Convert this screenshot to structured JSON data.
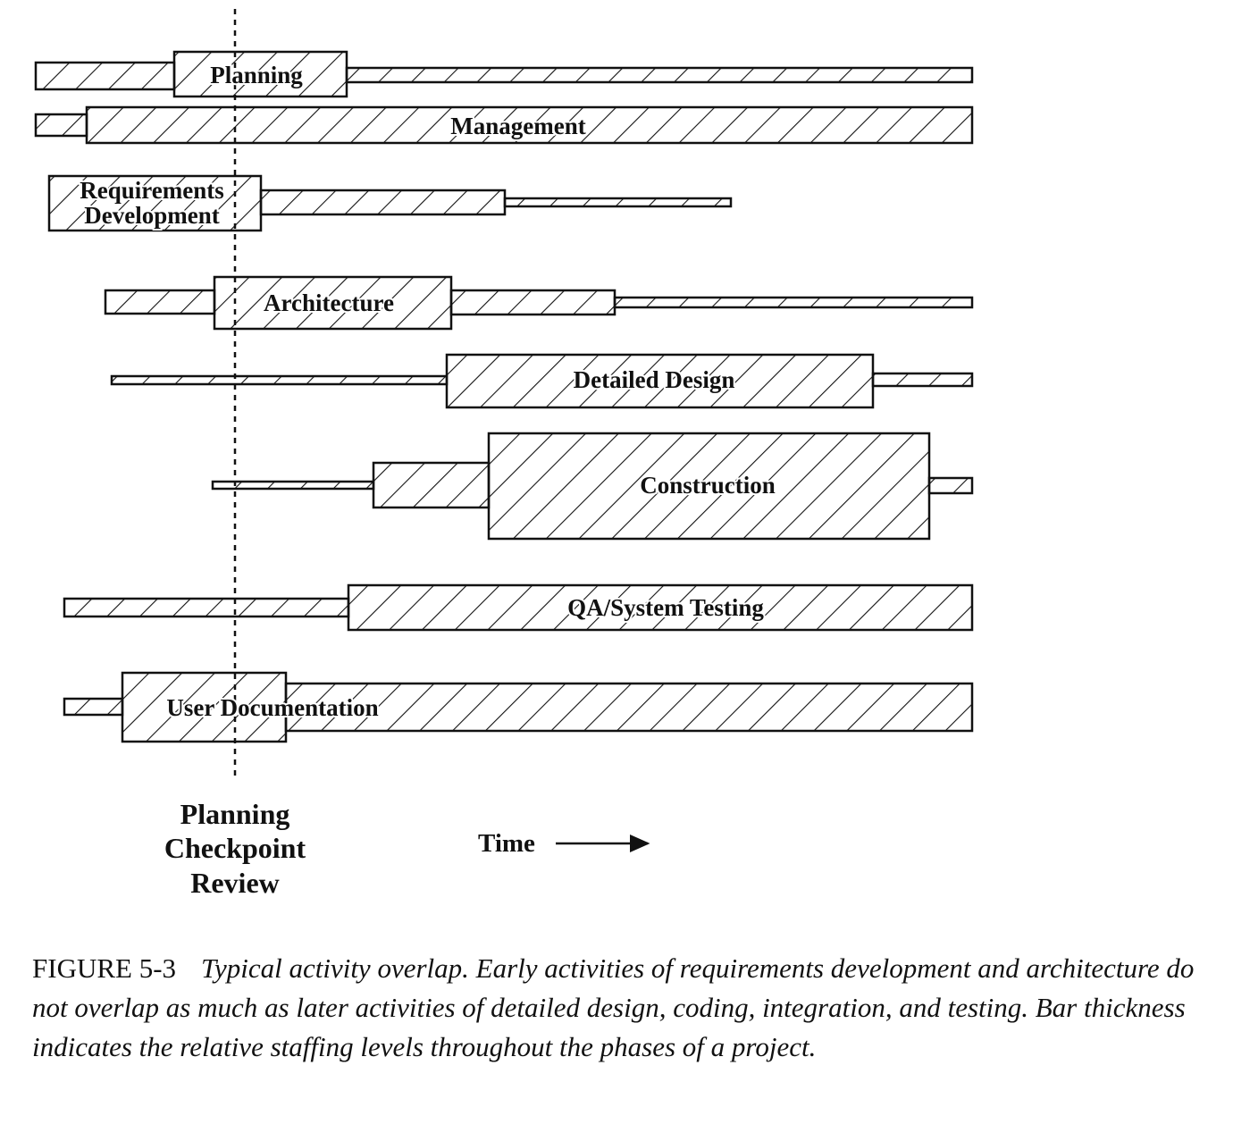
{
  "figure": {
    "activities": [
      {
        "label": "Planning"
      },
      {
        "label": "Management"
      },
      {
        "label": "Requirements Development",
        "lines": [
          "Requirements",
          "Development"
        ]
      },
      {
        "label": "Architecture"
      },
      {
        "label": "Detailed Design"
      },
      {
        "label": "Construction"
      },
      {
        "label": "QA/System Testing"
      },
      {
        "label": "User Documentation"
      }
    ],
    "checkpoint_label": [
      "Planning",
      "Checkpoint",
      "Review"
    ],
    "time_label": "Time"
  },
  "caption": {
    "figure_number": "FIGURE 5-3",
    "text": "Typical activity overlap. Early activities of requirements development and architecture do not overlap as much as later activities of detailed design, coding, integration, and testing. Bar thickness indicates the relative staffing levels throughout the phases of a project."
  }
}
